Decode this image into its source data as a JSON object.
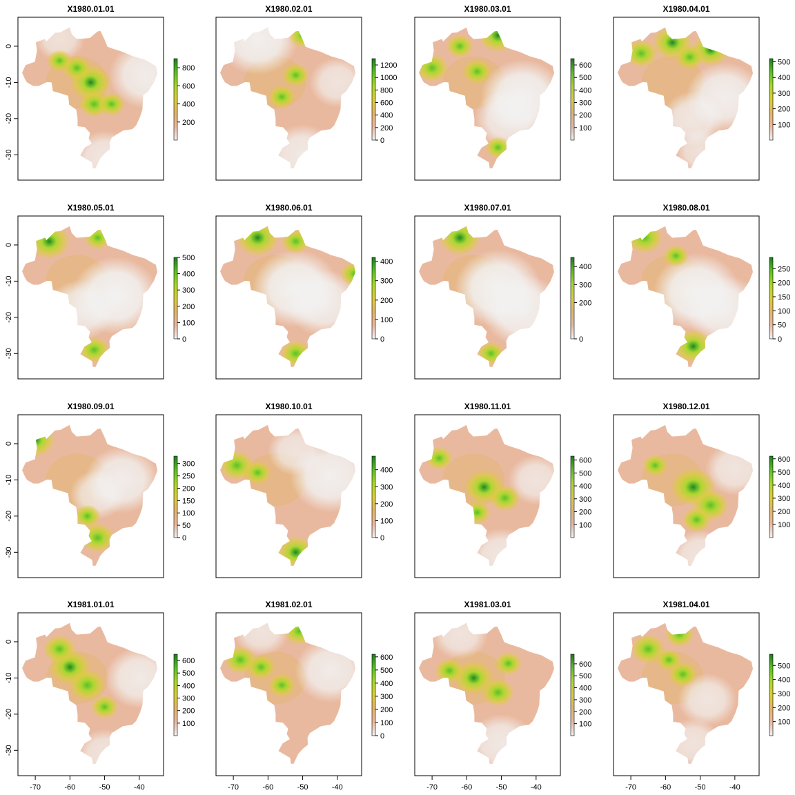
{
  "chart_data": {
    "type": "heatmap",
    "x_ticks": [
      -70,
      -60,
      -50,
      -40
    ],
    "y_ticks": [
      0,
      -10,
      -20,
      -30
    ],
    "xlim": [
      -75,
      -33
    ],
    "ylim": [
      -37,
      8
    ],
    "color_scale": [
      "#f2f2f2",
      "#e9b99f",
      "#e2b56d",
      "#d9ce3c",
      "#a9d82c",
      "#5bbf2a",
      "#1f7a1f"
    ],
    "panels": [
      {
        "title": "X1980.01.01",
        "legend_ticks": [
          200,
          400,
          600,
          800
        ],
        "legend_max": 900,
        "wet": [
          {
            "lon": -54,
            "lat": -10,
            "v": 0.85
          },
          {
            "lon": -58,
            "lat": -6,
            "v": 0.5
          },
          {
            "lon": -53,
            "lat": -16,
            "v": 0.55
          },
          {
            "lon": -48,
            "lat": -16,
            "v": 0.45
          },
          {
            "lon": -63,
            "lat": -4,
            "v": 0.4
          }
        ],
        "dry": [
          {
            "lon": -38,
            "lat": -8,
            "v": 0.8
          },
          {
            "lon": -50,
            "lat": -31,
            "v": 0.6
          },
          {
            "lon": -63,
            "lat": 2,
            "v": 0.4
          }
        ]
      },
      {
        "title": "X1980.02.01",
        "legend_ticks": [
          0,
          200,
          400,
          600,
          800,
          1000,
          1200
        ],
        "legend_max": 1300,
        "wet": [
          {
            "lon": -52,
            "lat": -8,
            "v": 0.45
          },
          {
            "lon": -56,
            "lat": -14,
            "v": 0.45
          },
          {
            "lon": -50,
            "lat": 3,
            "v": 0.5
          }
        ],
        "dry": [
          {
            "lon": -63,
            "lat": 2,
            "v": 0.9
          },
          {
            "lon": -40,
            "lat": -10,
            "v": 0.5
          },
          {
            "lon": -50,
            "lat": -30,
            "v": 0.7
          }
        ]
      },
      {
        "title": "X1980.03.01",
        "legend_ticks": [
          100,
          200,
          300,
          400,
          500,
          600
        ],
        "legend_max": 650,
        "wet": [
          {
            "lon": -51,
            "lat": 3,
            "v": 0.8
          },
          {
            "lon": -70,
            "lat": -6,
            "v": 0.6
          },
          {
            "lon": -57,
            "lat": -7,
            "v": 0.5
          },
          {
            "lon": -62,
            "lat": 0,
            "v": 0.45
          },
          {
            "lon": -51,
            "lat": -28,
            "v": 0.4
          }
        ],
        "dry": [
          {
            "lon": -44,
            "lat": -14,
            "v": 0.95
          },
          {
            "lon": -48,
            "lat": -20,
            "v": 0.7
          }
        ]
      },
      {
        "title": "X1980.04.01",
        "legend_ticks": [
          100,
          200,
          300,
          400,
          500
        ],
        "legend_max": 520,
        "wet": [
          {
            "lon": -58,
            "lat": 1,
            "v": 0.8
          },
          {
            "lon": -47,
            "lat": -1,
            "v": 0.75
          },
          {
            "lon": -67,
            "lat": -2,
            "v": 0.6
          },
          {
            "lon": -53,
            "lat": -3,
            "v": 0.5
          }
        ],
        "dry": [
          {
            "lon": -43,
            "lat": -14,
            "v": 0.85
          },
          {
            "lon": -52,
            "lat": -20,
            "v": 0.6
          },
          {
            "lon": -50,
            "lat": -29,
            "v": 0.4
          }
        ]
      },
      {
        "title": "X1980.05.01",
        "legend_ticks": [
          0,
          100,
          200,
          300,
          400,
          500
        ],
        "legend_max": 500,
        "wet": [
          {
            "lon": -66,
            "lat": 1,
            "v": 0.85
          },
          {
            "lon": -52,
            "lat": 2,
            "v": 0.45
          },
          {
            "lon": -53,
            "lat": -29,
            "v": 0.55
          }
        ],
        "dry": [
          {
            "lon": -47,
            "lat": -14,
            "v": 1.0
          },
          {
            "lon": -57,
            "lat": -18,
            "v": 0.7
          }
        ]
      },
      {
        "title": "X1980.06.01",
        "legend_ticks": [
          0,
          100,
          200,
          300,
          400
        ],
        "legend_max": 420,
        "wet": [
          {
            "lon": -63,
            "lat": 2,
            "v": 0.9
          },
          {
            "lon": -52,
            "lat": 1,
            "v": 0.5
          },
          {
            "lon": -35,
            "lat": -8,
            "v": 0.5
          },
          {
            "lon": -52,
            "lat": -30,
            "v": 0.55
          }
        ],
        "dry": [
          {
            "lon": -52,
            "lat": -12,
            "v": 1.0
          },
          {
            "lon": -44,
            "lat": -16,
            "v": 0.8
          }
        ]
      },
      {
        "title": "X1980.07.01",
        "legend_ticks": [
          0,
          200,
          300,
          400
        ],
        "legend_max": 450,
        "wet": [
          {
            "lon": -62,
            "lat": 2,
            "v": 0.85
          },
          {
            "lon": -53,
            "lat": -30,
            "v": 0.45
          }
        ],
        "dry": [
          {
            "lon": -51,
            "lat": -12,
            "v": 1.0
          },
          {
            "lon": -44,
            "lat": -18,
            "v": 0.9
          }
        ]
      },
      {
        "title": "X1980.08.01",
        "legend_ticks": [
          0,
          50,
          100,
          150,
          200,
          250
        ],
        "legend_max": 290,
        "wet": [
          {
            "lon": -66,
            "lat": 2,
            "v": 0.7
          },
          {
            "lon": -52,
            "lat": -28,
            "v": 0.8
          },
          {
            "lon": -57,
            "lat": -3,
            "v": 0.4
          }
        ],
        "dry": [
          {
            "lon": -51,
            "lat": -13,
            "v": 1.0
          },
          {
            "lon": -43,
            "lat": -18,
            "v": 0.85
          }
        ]
      },
      {
        "title": "X1980.09.01",
        "legend_ticks": [
          0,
          50,
          100,
          150,
          200,
          250,
          300
        ],
        "legend_max": 330,
        "wet": [
          {
            "lon": -70,
            "lat": 1,
            "v": 0.8
          },
          {
            "lon": -52,
            "lat": -26,
            "v": 0.65
          },
          {
            "lon": -55,
            "lat": -20,
            "v": 0.45
          }
        ],
        "dry": [
          {
            "lon": -45,
            "lat": -10,
            "v": 0.8
          },
          {
            "lon": -52,
            "lat": -14,
            "v": 0.5
          }
        ]
      },
      {
        "title": "X1980.10.01",
        "legend_ticks": [
          0,
          100,
          200,
          300,
          400
        ],
        "legend_max": 480,
        "wet": [
          {
            "lon": -69,
            "lat": -6,
            "v": 0.65
          },
          {
            "lon": -52,
            "lat": -30,
            "v": 0.75
          },
          {
            "lon": -63,
            "lat": -8,
            "v": 0.45
          }
        ],
        "dry": [
          {
            "lon": -42,
            "lat": -9,
            "v": 0.9
          },
          {
            "lon": -52,
            "lat": -2,
            "v": 0.5
          }
        ]
      },
      {
        "title": "X1980.11.01",
        "legend_ticks": [
          100,
          200,
          300,
          400,
          500,
          600
        ],
        "legend_max": 630,
        "wet": [
          {
            "lon": -55,
            "lat": -12,
            "v": 0.8
          },
          {
            "lon": -49,
            "lat": -15,
            "v": 0.55
          },
          {
            "lon": -57,
            "lat": -19,
            "v": 0.45
          },
          {
            "lon": -68,
            "lat": -4,
            "v": 0.45
          }
        ],
        "dry": [
          {
            "lon": -40,
            "lat": -10,
            "v": 0.5
          },
          {
            "lon": -50,
            "lat": -31,
            "v": 0.6
          }
        ]
      },
      {
        "title": "X1980.12.01",
        "legend_ticks": [
          100,
          200,
          300,
          400,
          500,
          600
        ],
        "legend_max": 620,
        "wet": [
          {
            "lon": -52,
            "lat": -12,
            "v": 0.95
          },
          {
            "lon": -47,
            "lat": -17,
            "v": 0.7
          },
          {
            "lon": -51,
            "lat": -21,
            "v": 0.5
          },
          {
            "lon": -63,
            "lat": -6,
            "v": 0.4
          }
        ],
        "dry": [
          {
            "lon": -40,
            "lat": -7,
            "v": 0.55
          },
          {
            "lon": -50,
            "lat": -31,
            "v": 0.55
          }
        ]
      },
      {
        "title": "X1981.01.01",
        "legend_ticks": [
          100,
          200,
          300,
          400,
          500,
          600
        ],
        "legend_max": 650,
        "wet": [
          {
            "lon": -60,
            "lat": -7,
            "v": 0.85
          },
          {
            "lon": -55,
            "lat": -12,
            "v": 0.7
          },
          {
            "lon": -63,
            "lat": -2,
            "v": 0.6
          },
          {
            "lon": -50,
            "lat": -18,
            "v": 0.45
          }
        ],
        "dry": [
          {
            "lon": -40,
            "lat": -10,
            "v": 0.7
          },
          {
            "lon": -50,
            "lat": -31,
            "v": 0.5
          }
        ]
      },
      {
        "title": "X1981.02.01",
        "legend_ticks": [
          0,
          100,
          200,
          300,
          400,
          500,
          600
        ],
        "legend_max": 620,
        "wet": [
          {
            "lon": -68,
            "lat": -5,
            "v": 0.6
          },
          {
            "lon": -62,
            "lat": -7,
            "v": 0.5
          },
          {
            "lon": -56,
            "lat": -12,
            "v": 0.45
          },
          {
            "lon": -51,
            "lat": 3,
            "v": 0.6
          }
        ],
        "dry": [
          {
            "lon": -42,
            "lat": -8,
            "v": 0.75
          },
          {
            "lon": -62,
            "lat": 3,
            "v": 0.5
          }
        ]
      },
      {
        "title": "X1981.03.01",
        "legend_ticks": [
          100,
          200,
          300,
          400,
          500,
          600
        ],
        "legend_max": 680,
        "wet": [
          {
            "lon": -58,
            "lat": -10,
            "v": 0.8
          },
          {
            "lon": -51,
            "lat": -14,
            "v": 0.6
          },
          {
            "lon": -65,
            "lat": -8,
            "v": 0.5
          },
          {
            "lon": -48,
            "lat": -6,
            "v": 0.45
          }
        ],
        "dry": [
          {
            "lon": -62,
            "lat": 2,
            "v": 0.5
          },
          {
            "lon": -50,
            "lat": -28,
            "v": 0.65
          }
        ]
      },
      {
        "title": "X1981.04.01",
        "legend_ticks": [
          100,
          200,
          300,
          400,
          500
        ],
        "legend_max": 580,
        "wet": [
          {
            "lon": -65,
            "lat": -2,
            "v": 0.65
          },
          {
            "lon": -56,
            "lat": 2,
            "v": 0.5
          },
          {
            "lon": -55,
            "lat": -9,
            "v": 0.5
          },
          {
            "lon": -59,
            "lat": -5,
            "v": 0.4
          }
        ],
        "dry": [
          {
            "lon": -48,
            "lat": -16,
            "v": 0.55
          },
          {
            "lon": -52,
            "lat": -28,
            "v": 0.5
          }
        ]
      }
    ]
  }
}
